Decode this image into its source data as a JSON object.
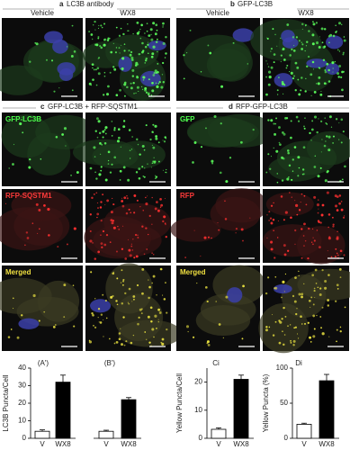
{
  "panels": [
    {
      "label": "a",
      "title": "LC3B antibody",
      "columns": [
        "Vehicle",
        "WX8"
      ]
    },
    {
      "label": "b",
      "title": "GFP-LC3B",
      "columns": [
        "Vehicle",
        "WX8"
      ]
    },
    {
      "label": "c",
      "title": "GFP-LC3B + RFP-SQSTM1",
      "rows": [
        "GFP-LC3B",
        "RFP-SQSTM1",
        "Merged"
      ]
    },
    {
      "label": "d",
      "title": "RFP-GFP-LC3B",
      "rows": [
        "GFP",
        "RFP",
        "Merged"
      ]
    }
  ],
  "chart_data": [
    {
      "type": "bar",
      "title": "(A')",
      "ylabel": "LC3B Puncta/Cell",
      "categories": [
        "V",
        "WX8"
      ],
      "values": [
        4,
        32
      ],
      "errors": [
        0.8,
        4
      ],
      "colors": [
        "#ffffff",
        "#000000"
      ],
      "ylim": [
        0,
        40
      ],
      "yticks": [
        0,
        10,
        20,
        30,
        40
      ]
    },
    {
      "type": "bar",
      "title": "(B')",
      "categories": [
        "V",
        "WX8"
      ],
      "values": [
        4,
        22
      ],
      "errors": [
        0.6,
        1.2
      ],
      "colors": [
        "#ffffff",
        "#000000"
      ],
      "ylim": [
        0,
        40
      ]
    },
    {
      "type": "bar",
      "title": "Ci",
      "ylabel": "Yellow Puncta/Cell",
      "categories": [
        "V",
        "WX8"
      ],
      "values": [
        3.2,
        21
      ],
      "errors": [
        0.5,
        1.5
      ],
      "colors": [
        "#ffffff",
        "#000000"
      ],
      "ylim": [
        0,
        25
      ],
      "yticks": [
        0,
        10,
        20
      ]
    },
    {
      "type": "bar",
      "title": "Di",
      "ylabel": "Yellow Puncta (%)",
      "categories": [
        "V",
        "WX8"
      ],
      "values": [
        20,
        82
      ],
      "errors": [
        1.5,
        9
      ],
      "colors": [
        "#ffffff",
        "#000000"
      ],
      "ylim": [
        0,
        100
      ],
      "yticks": [
        0,
        50,
        100
      ]
    }
  ]
}
